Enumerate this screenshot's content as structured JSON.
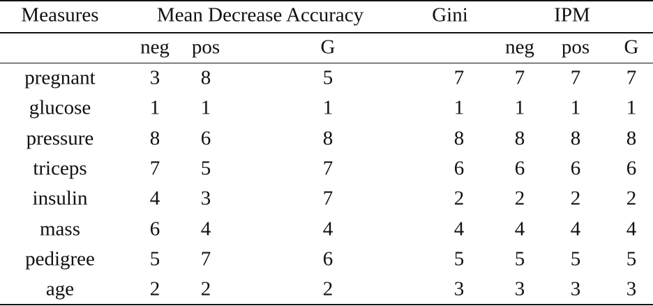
{
  "table": {
    "header": {
      "measures": "Measures",
      "mda": {
        "label": "Mean Decrease Accuracy",
        "sub": [
          "neg",
          "pos",
          "G"
        ]
      },
      "gini": "Gini",
      "ipm": {
        "label": "IPM",
        "sub": [
          "neg",
          "pos",
          "G"
        ]
      }
    },
    "rows": [
      {
        "label": "pregnant",
        "values": [
          3,
          8,
          5,
          7,
          7,
          7,
          7
        ]
      },
      {
        "label": "glucose",
        "values": [
          1,
          1,
          1,
          1,
          1,
          1,
          1
        ]
      },
      {
        "label": "pressure",
        "values": [
          8,
          6,
          8,
          8,
          8,
          8,
          8
        ]
      },
      {
        "label": "triceps",
        "values": [
          7,
          5,
          7,
          6,
          6,
          6,
          6
        ]
      },
      {
        "label": "insulin",
        "values": [
          4,
          3,
          7,
          2,
          2,
          2,
          2
        ]
      },
      {
        "label": "mass",
        "values": [
          6,
          4,
          4,
          4,
          4,
          4,
          4
        ]
      },
      {
        "label": "pedigree",
        "values": [
          5,
          7,
          6,
          5,
          5,
          5,
          5
        ]
      },
      {
        "label": "age",
        "values": [
          2,
          2,
          2,
          3,
          3,
          3,
          3
        ]
      }
    ]
  }
}
